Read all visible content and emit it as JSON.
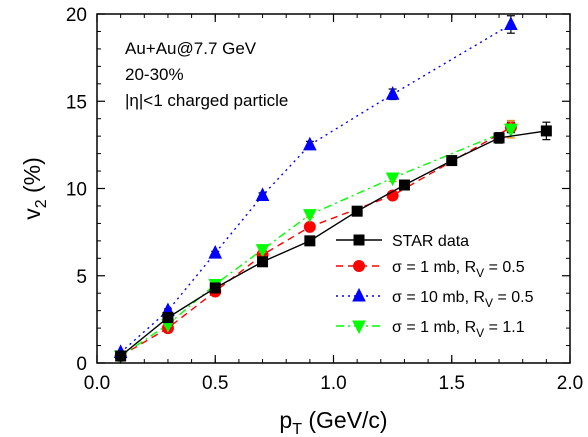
{
  "chart_data": {
    "type": "line",
    "xlabel": "p",
    "xlabel_sub": "T",
    "xlabel_unit": " (GeV/c)",
    "ylabel": "v",
    "ylabel_sub": "2",
    "ylabel_unit": " (%)",
    "xlim": [
      0.0,
      2.0
    ],
    "ylim": [
      0,
      20
    ],
    "x_ticks": [
      "0.0",
      "0.5",
      "1.0",
      "1.5",
      "2.0"
    ],
    "y_ticks": [
      "0",
      "5",
      "10",
      "15",
      "20"
    ],
    "x_tick_values": [
      0.0,
      0.5,
      1.0,
      1.5,
      2.0
    ],
    "y_tick_values": [
      0,
      5,
      10,
      15,
      20
    ],
    "annotations": [
      "Au+Au@7.7 GeV",
      "20-30%",
      "|η|<1 charged particle"
    ],
    "legend_position": "bottom-right",
    "series": [
      {
        "name": "STAR data",
        "color": "#000000",
        "marker": "square",
        "line": "solid",
        "x": [
          0.1,
          0.3,
          0.5,
          0.7,
          0.9,
          1.1,
          1.3,
          1.5,
          1.7,
          1.9
        ],
        "y": [
          0.4,
          2.6,
          4.3,
          5.8,
          7.0,
          8.7,
          10.2,
          11.6,
          12.9,
          13.3
        ],
        "err": [
          0.1,
          0.1,
          0.1,
          0.1,
          0.1,
          0.15,
          0.2,
          0.2,
          0.3,
          0.5
        ]
      },
      {
        "name": "σ = 1 mb, R",
        "name_sub": "V",
        "name_tail": " = 0.5",
        "color": "#ff0000",
        "marker": "circle",
        "line": "dashed",
        "x": [
          0.1,
          0.3,
          0.5,
          0.7,
          0.9,
          1.25,
          1.75
        ],
        "y": [
          0.4,
          2.0,
          4.1,
          6.2,
          7.8,
          9.6,
          13.5
        ],
        "err": [
          0.05,
          0.1,
          0.1,
          0.15,
          0.15,
          0.2,
          0.3
        ]
      },
      {
        "name": "σ = 10 mb, R",
        "name_sub": "V",
        "name_tail": " = 0.5",
        "color": "#0000ff",
        "marker": "triangle-up",
        "line": "dotted",
        "x": [
          0.1,
          0.3,
          0.5,
          0.7,
          0.9,
          1.25,
          1.75
        ],
        "y": [
          0.6,
          3.0,
          6.3,
          9.6,
          12.5,
          15.4,
          19.4
        ],
        "err": [
          0.05,
          0.1,
          0.1,
          0.15,
          0.2,
          0.3,
          0.5
        ]
      },
      {
        "name": "σ = 1 mb, R",
        "name_sub": "V",
        "name_tail": " = 1.1",
        "color": "#00ff00",
        "marker": "triangle-down",
        "line": "dashdot",
        "x": [
          0.1,
          0.3,
          0.5,
          0.7,
          0.9,
          1.25,
          1.75
        ],
        "y": [
          0.4,
          2.2,
          4.5,
          6.5,
          8.5,
          10.6,
          13.4
        ],
        "err": [
          0.05,
          0.1,
          0.1,
          0.15,
          0.15,
          0.2,
          0.5
        ]
      }
    ]
  }
}
